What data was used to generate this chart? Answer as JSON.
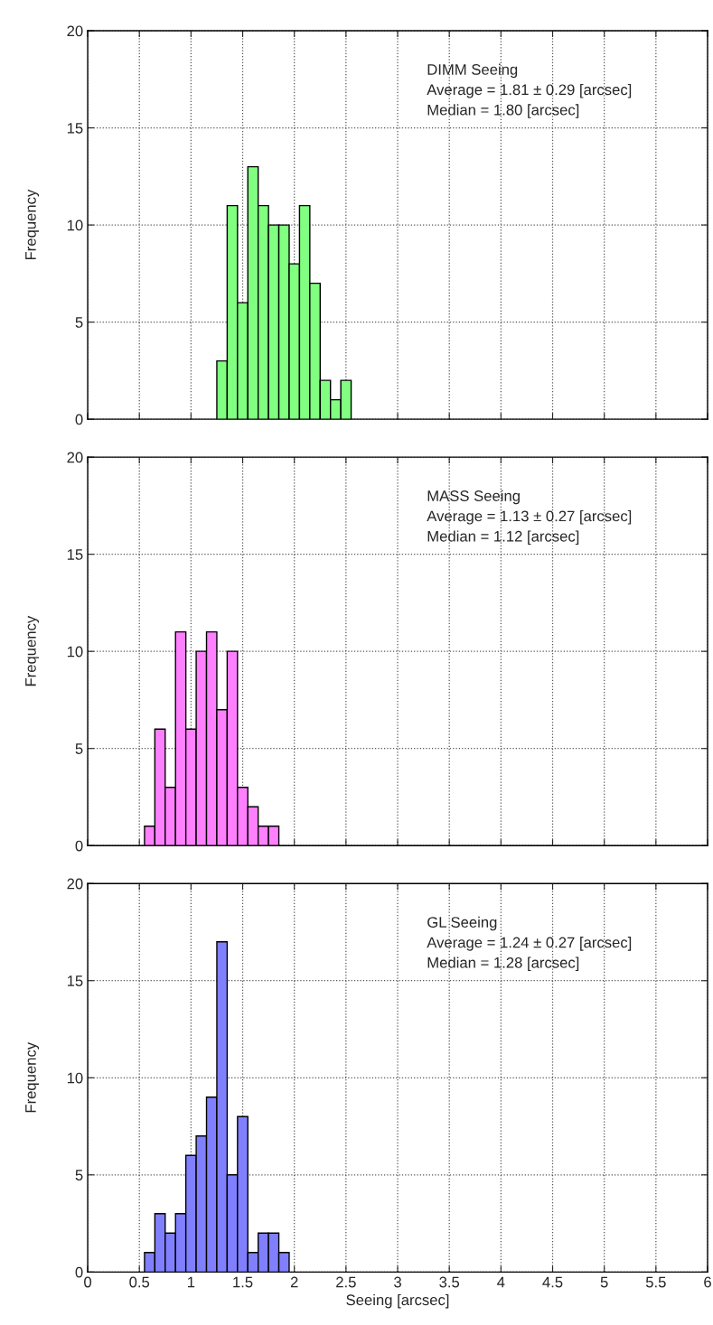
{
  "chart_data": [
    {
      "type": "histogram",
      "ylabel": "Frequency",
      "color": "#80ff80",
      "bins": [
        1.25,
        1.35,
        1.45,
        1.55,
        1.65,
        1.75,
        1.85,
        1.95,
        2.05,
        2.15,
        2.25,
        2.35,
        2.45,
        2.55
      ],
      "values": [
        3,
        11,
        6,
        13,
        11,
        10,
        10,
        8,
        11,
        7,
        2,
        1,
        2
      ],
      "xlim": [
        0,
        6
      ],
      "xticks": [
        0,
        0.5,
        1,
        1.5,
        2,
        2.5,
        3,
        3.5,
        4,
        4.5,
        5,
        5.5,
        6
      ],
      "ylim": [
        0,
        20
      ],
      "yticks": [
        0,
        5,
        10,
        15,
        20
      ],
      "grid": true,
      "tick_labels": "y",
      "annotations": [
        "DIMM Seeing",
        "Average = 1.81 ± 0.29 [arcsec]",
        "Median = 1.80 [arcsec]"
      ]
    },
    {
      "type": "histogram",
      "ylabel": "Frequency",
      "color": "#ff80ff",
      "bins": [
        0.55,
        0.65,
        0.75,
        0.85,
        0.95,
        1.05,
        1.15,
        1.25,
        1.35,
        1.45,
        1.55,
        1.65,
        1.75,
        1.85
      ],
      "values": [
        1,
        6,
        3,
        11,
        6,
        10,
        11,
        7,
        10,
        3,
        2,
        1,
        1
      ],
      "xlim": [
        0,
        6
      ],
      "xticks": [
        0,
        0.5,
        1,
        1.5,
        2,
        2.5,
        3,
        3.5,
        4,
        4.5,
        5,
        5.5,
        6
      ],
      "ylim": [
        0,
        20
      ],
      "yticks": [
        0,
        5,
        10,
        15,
        20
      ],
      "grid": true,
      "tick_labels": "y",
      "annotations": [
        "MASS Seeing",
        "Average = 1.13 ± 0.27 [arcsec]",
        "Median = 1.12 [arcsec]"
      ]
    },
    {
      "type": "histogram",
      "xlabel": "Seeing [arcsec]",
      "ylabel": "Frequency",
      "color": "#8080ff",
      "bins": [
        0.55,
        0.65,
        0.75,
        0.85,
        0.95,
        1.05,
        1.15,
        1.25,
        1.35,
        1.45,
        1.55,
        1.65,
        1.75,
        1.85,
        1.95
      ],
      "values": [
        1,
        3,
        2,
        3,
        6,
        7,
        9,
        17,
        5,
        8,
        1,
        2,
        2,
        1
      ],
      "xlim": [
        0,
        6
      ],
      "xticks": [
        0,
        0.5,
        1,
        1.5,
        2,
        2.5,
        3,
        3.5,
        4,
        4.5,
        5,
        5.5,
        6
      ],
      "ylim": [
        0,
        20
      ],
      "yticks": [
        0,
        5,
        10,
        15,
        20
      ],
      "grid": true,
      "annotations": [
        "GL Seeing",
        "Average = 1.24 ± 0.27 [arcsec]",
        "Median = 1.28 [arcsec]"
      ]
    }
  ]
}
